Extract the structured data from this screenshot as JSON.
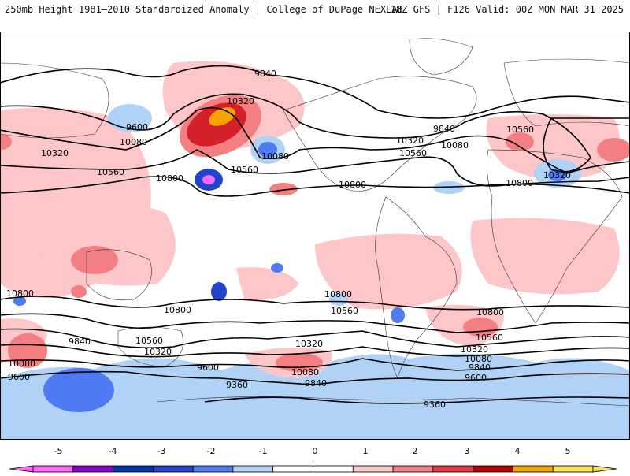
{
  "header": {
    "title": "250mb Height 1981–2010 Standardized Anomaly | College of DuPage NEXLAB",
    "run_info": "18Z GFS | F126 Valid: 00Z MON MAR 31 2025"
  },
  "contour_labels": [
    "9840",
    "10320",
    "9600",
    "10080",
    "10320",
    "10560",
    "10800",
    "10080",
    "10560",
    "9840",
    "10320",
    "10080",
    "10560",
    "10800",
    "10560",
    "10320",
    "10800",
    "10800",
    "10800",
    "10560",
    "10800",
    "10560",
    "10320",
    "10320",
    "10080",
    "9840",
    "9600",
    "10080",
    "9600",
    "9360",
    "9840",
    "9360",
    "10560",
    "10320",
    "10080",
    "9840",
    "9600",
    "10800"
  ],
  "colorbar": {
    "ticks": [
      "-5",
      "-4",
      "-3",
      "-2",
      "-1",
      "0",
      "1",
      "2",
      "3",
      "4",
      "5"
    ],
    "colors": [
      "#ff66ff",
      "#8800cc",
      "#0033aa",
      "#2244cc",
      "#4f7bf2",
      "#b0d2f6",
      "#ffffff",
      "#ffffff",
      "#fdc6c9",
      "#f47f82",
      "#e23a40",
      "#b30000",
      "#f4a300",
      "#ffdd55"
    ]
  }
}
